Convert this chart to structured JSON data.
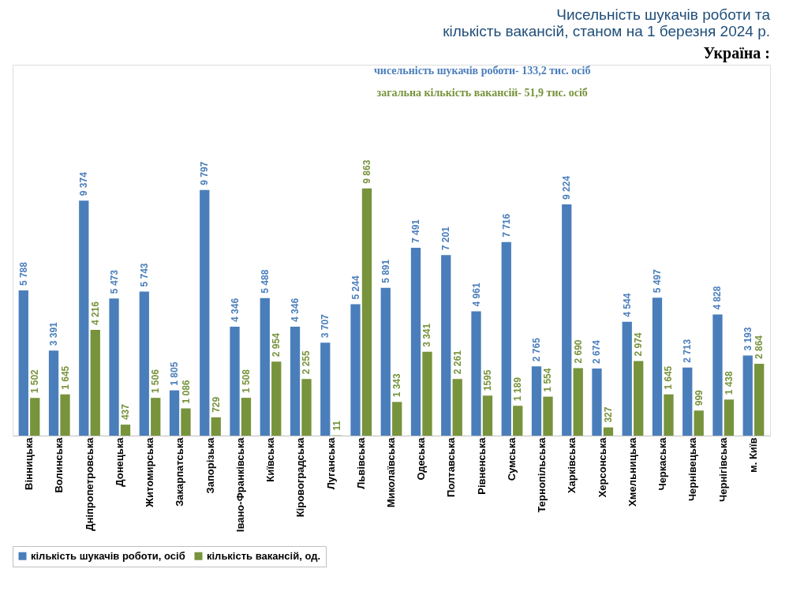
{
  "chart_data": {
    "type": "bar",
    "title": [
      "Чисельність шукачів роботи та",
      "кількість вакансій, станом на 1 березня 2024 р."
    ],
    "subtitle": "Україна :",
    "annotations": [
      "чисельність шукачів роботи- 133,2 тис. осіб",
      "загальна кількість вакансій- 51,9 тис. осіб"
    ],
    "categories": [
      "Вінницька",
      "Волинська",
      "Дніпропетровська",
      "Донецька",
      "Житомирська",
      "Закарпатська",
      "Запорізька",
      "Івано-Франківська",
      "Київська",
      "Кіровоградська",
      "Луганська",
      "Львівська",
      "Миколаївська",
      "Одеська",
      "Полтавська",
      "Рівненська",
      "Сумська",
      "Тернопільська",
      "Харківська",
      "Херсонська",
      "Хмельницька",
      "Черкаська",
      "Чернівецька",
      "Чернігівська",
      "м. Київ"
    ],
    "series": [
      {
        "name": "кількість шукачів роботи, осіб",
        "color": "#4a7ebb",
        "values": [
          5788,
          3391,
          9374,
          5473,
          5743,
          1805,
          9797,
          4346,
          5488,
          4346,
          3707,
          5244,
          5891,
          7491,
          7201,
          4961,
          7716,
          2765,
          9224,
          2674,
          4544,
          5497,
          2713,
          4828,
          3193
        ],
        "value_labels": [
          "5 788",
          "3 391",
          "9 374",
          "5 473",
          "5 743",
          "1 805",
          "9 797",
          "4 346",
          "5 488",
          "4 346",
          "3 707",
          "5 244",
          "5 891",
          "7 491",
          "7 201",
          "4 961",
          "7 716",
          "2 765",
          "9 224",
          "2 674",
          "4 544",
          "5 497",
          "2 713",
          "4 828",
          "3 193"
        ]
      },
      {
        "name": "кількість вакансій, од.",
        "color": "#77933c",
        "values": [
          1502,
          1645,
          4216,
          437,
          1506,
          1086,
          729,
          1508,
          2954,
          2255,
          11,
          9863,
          1343,
          3341,
          2261,
          1595,
          1189,
          1554,
          2690,
          327,
          2974,
          1645,
          999,
          1438,
          2864
        ],
        "value_labels": [
          "1 502",
          "1 645",
          "4 216",
          "437",
          "1 506",
          "1 086",
          "729",
          "1 508",
          "2 954",
          "2 255",
          "11",
          "9 863",
          "1 343",
          "3 341",
          "2 261",
          "1595",
          "1 189",
          "1 554",
          "2 690",
          "327",
          "2 974",
          "1 645",
          "999",
          "1 438",
          "2 864"
        ]
      }
    ],
    "legend": "bottom",
    "grid": false
  }
}
